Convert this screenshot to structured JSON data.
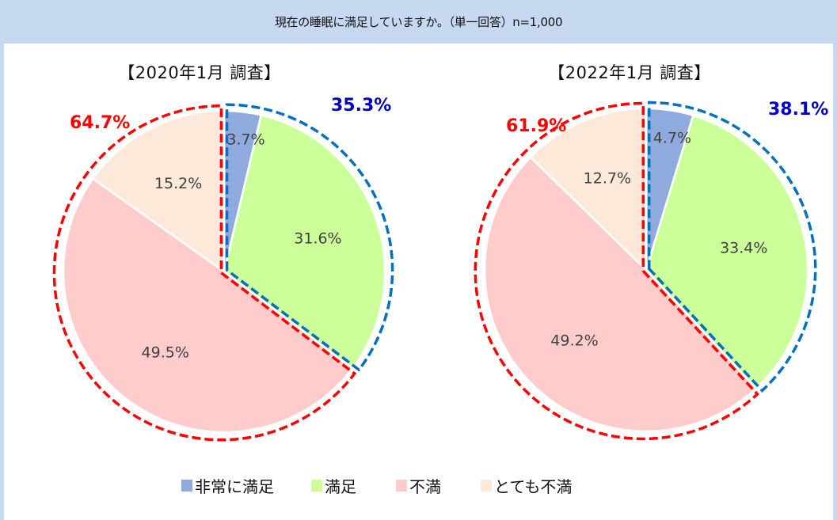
{
  "header": {
    "question": "現在の睡眠に満足していますか。（単一回答）n=1,000"
  },
  "legend": [
    {
      "label": "非常に満足",
      "color": "#8faadc"
    },
    {
      "label": "満足",
      "color": "#ccff99"
    },
    {
      "label": "不満",
      "color": "#ffcccc"
    },
    {
      "label": "とても不満",
      "color": "#fde9d9"
    }
  ],
  "colors": {
    "satisfied_group": "#0070c0",
    "satisfied_group_label": "#0000cc",
    "dissatisfied_group": "#ff0000",
    "slice_label": "#404040"
  },
  "charts": [
    {
      "title": "【2020年1月 調査】",
      "satisfied_total_label": "35.3%",
      "dissatisfied_total_label": "64.7%",
      "slices": [
        {
          "label": "3.7%"
        },
        {
          "label": "31.6%"
        },
        {
          "label": "49.5%"
        },
        {
          "label": "15.2%"
        }
      ]
    },
    {
      "title": "【2022年1月 調査】",
      "satisfied_total_label": "38.1%",
      "dissatisfied_total_label": "61.9%",
      "slices": [
        {
          "label": "4.7%"
        },
        {
          "label": "33.4%"
        },
        {
          "label": "49.2%"
        },
        {
          "label": "12.7%"
        }
      ]
    }
  ],
  "chart_data": [
    {
      "type": "pie",
      "title": "【2020年1月 調査】",
      "subtitle": "現在の睡眠に満足していますか。（単一回答）n=1,000",
      "categories": [
        "非常に満足",
        "満足",
        "不満",
        "とても不満"
      ],
      "values": [
        3.7,
        31.6,
        49.5,
        15.2
      ],
      "colors": [
        "#8faadc",
        "#ccff99",
        "#ffcccc",
        "#fde9d9"
      ],
      "start_angle": "12 o'clock, clockwise",
      "annotations": [
        {
          "text": "35.3%",
          "group": [
            "非常に満足",
            "満足"
          ],
          "color": "#0000cc"
        },
        {
          "text": "64.7%",
          "group": [
            "不満",
            "とても不満"
          ],
          "color": "#ff0000"
        }
      ],
      "legend_position": "bottom"
    },
    {
      "type": "pie",
      "title": "【2022年1月 調査】",
      "subtitle": "現在の睡眠に満足していますか。（単一回答）n=1,000",
      "categories": [
        "非常に満足",
        "満足",
        "不満",
        "とても不満"
      ],
      "values": [
        4.7,
        33.4,
        49.2,
        12.7
      ],
      "colors": [
        "#8faadc",
        "#ccff99",
        "#ffcccc",
        "#fde9d9"
      ],
      "start_angle": "12 o'clock, clockwise",
      "annotations": [
        {
          "text": "38.1%",
          "group": [
            "非常に満足",
            "満足"
          ],
          "color": "#0000cc"
        },
        {
          "text": "61.9%",
          "group": [
            "不満",
            "とても不満"
          ],
          "color": "#ff0000"
        }
      ],
      "legend_position": "bottom"
    }
  ]
}
